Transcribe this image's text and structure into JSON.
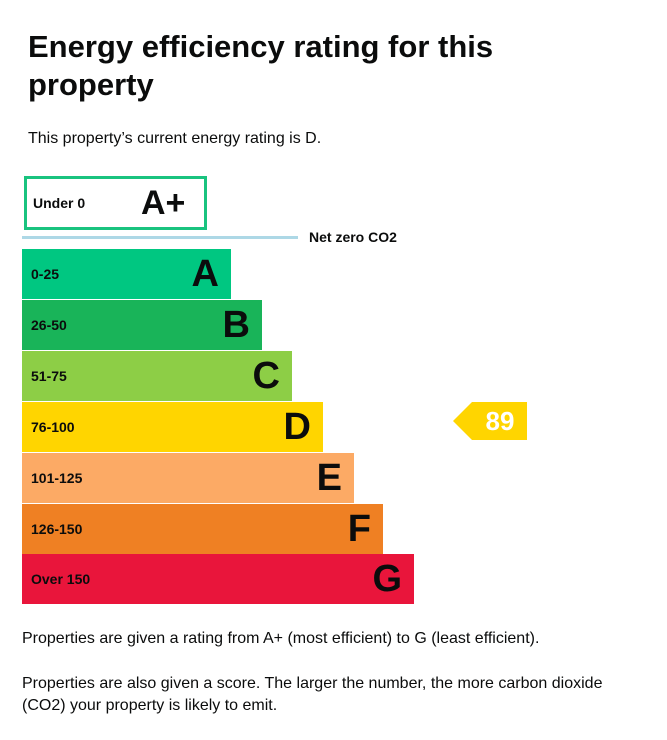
{
  "title": "Energy efficiency rating for this property",
  "current_rating_text": "This property’s current energy rating is D.",
  "aplus": {
    "range": "Under 0",
    "letter": "A+",
    "color": "#19c37f"
  },
  "net_zero_label": "Net zero CO2",
  "bands": [
    {
      "range": "0-25",
      "letter": "A",
      "color": "#00c781"
    },
    {
      "range": "26-50",
      "letter": "B",
      "color": "#19b459"
    },
    {
      "range": "51-75",
      "letter": "C",
      "color": "#8dce46"
    },
    {
      "range": "76-100",
      "letter": "D",
      "color": "#ffd500"
    },
    {
      "range": "101-125",
      "letter": "E",
      "color": "#fcaa65"
    },
    {
      "range": "126-150",
      "letter": "F",
      "color": "#ef8023"
    },
    {
      "range": "Over 150",
      "letter": "G",
      "color": "#e9153b"
    }
  ],
  "score": {
    "value": "89",
    "band": "D",
    "color": "#ffd500"
  },
  "note1": "Properties are given a rating from A+ (most efficient) to G (least efficient).",
  "note2": "Properties are also given a score. The larger the number, the more carbon dioxide (CO2) your property is likely to emit."
}
